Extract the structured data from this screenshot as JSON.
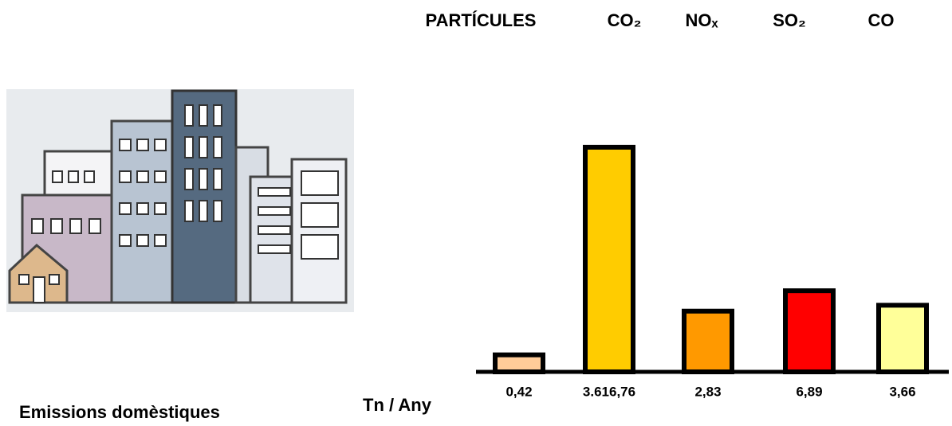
{
  "chart_data": {
    "type": "bar",
    "title": "Emissions domèstiques",
    "unit_label": "Tn / Any",
    "categories": [
      "PARTÍCULES",
      "CO₂",
      "NOₓ",
      "SO₂",
      "CO"
    ],
    "values": [
      0.42,
      3616.76,
      2.83,
      6.89,
      3.66
    ],
    "value_labels": [
      "0,42",
      "3.616,76",
      "2,83",
      "6,89",
      "3,66"
    ],
    "colors": [
      "#ffcc99",
      "#ffcc00",
      "#ff9900",
      "#ff0000",
      "#ffff99"
    ],
    "log_scale": true,
    "ylim": [
      0.2,
      4000
    ]
  }
}
